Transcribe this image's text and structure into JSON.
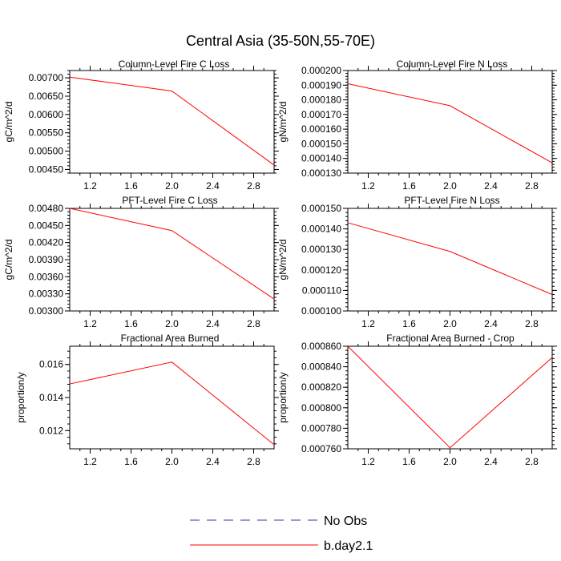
{
  "figure": {
    "title": "Central Asia (35-50N,55-70E)"
  },
  "chart_data": [
    {
      "type": "line",
      "title": "Column-Level Fire C Loss",
      "ylabel": "gC/m^2/d",
      "x": [
        1,
        2,
        3
      ],
      "series": [
        {
          "name": "b.day2.1",
          "values": [
            0.00702,
            0.00664,
            0.00462
          ]
        }
      ],
      "xlim": [
        1,
        3
      ],
      "ylim": [
        0.0044,
        0.0072
      ],
      "xticks": [
        1.2,
        1.6,
        2.0,
        2.4,
        2.8
      ],
      "xtick_labels": [
        "1.2",
        "1.6",
        "2.0",
        "2.4",
        "2.8"
      ],
      "yticks": [
        0.0045,
        0.005,
        0.0055,
        0.006,
        0.0065,
        0.007
      ],
      "ytick_labels": [
        "0.00450",
        "0.00500",
        "0.00550",
        "0.00600",
        "0.00650",
        "0.00700"
      ]
    },
    {
      "type": "line",
      "title": "Column-Level Fire N Loss",
      "ylabel": "gN/m^2/d",
      "x": [
        1,
        2,
        3
      ],
      "series": [
        {
          "name": "b.day2.1",
          "values": [
            0.000191,
            0.000176,
            0.000137
          ]
        }
      ],
      "xlim": [
        1,
        3
      ],
      "ylim": [
        0.00013,
        0.0002
      ],
      "xticks": [
        1.2,
        1.6,
        2.0,
        2.4,
        2.8
      ],
      "xtick_labels": [
        "1.2",
        "1.6",
        "2.0",
        "2.4",
        "2.8"
      ],
      "yticks": [
        0.00013,
        0.00014,
        0.00015,
        0.00016,
        0.00017,
        0.00018,
        0.00019,
        0.0002
      ],
      "ytick_labels": [
        "0.000130",
        "0.000140",
        "0.000150",
        "0.000160",
        "0.000170",
        "0.000180",
        "0.000190",
        "0.000200"
      ]
    },
    {
      "type": "line",
      "title": "PFT-Level Fire C Loss",
      "ylabel": "gC/m^2/d",
      "x": [
        1,
        2,
        3
      ],
      "series": [
        {
          "name": "b.day2.1",
          "values": [
            0.0048,
            0.00441,
            0.00321
          ]
        }
      ],
      "xlim": [
        1,
        3
      ],
      "ylim": [
        0.003,
        0.0048
      ],
      "xticks": [
        1.2,
        1.6,
        2.0,
        2.4,
        2.8
      ],
      "xtick_labels": [
        "1.2",
        "1.6",
        "2.0",
        "2.4",
        "2.8"
      ],
      "yticks": [
        0.003,
        0.0033,
        0.0036,
        0.0039,
        0.0042,
        0.0045,
        0.0048
      ],
      "ytick_labels": [
        "0.00300",
        "0.00330",
        "0.00360",
        "0.00390",
        "0.00420",
        "0.00450",
        "0.00480"
      ]
    },
    {
      "type": "line",
      "title": "PFT-Level Fire N Loss",
      "ylabel": "gN/m^2/d",
      "x": [
        1,
        2,
        3
      ],
      "series": [
        {
          "name": "b.day2.1",
          "values": [
            0.000143,
            0.000129,
            0.000108
          ]
        }
      ],
      "xlim": [
        1,
        3
      ],
      "ylim": [
        0.0001,
        0.00015
      ],
      "xticks": [
        1.2,
        1.6,
        2.0,
        2.4,
        2.8
      ],
      "xtick_labels": [
        "1.2",
        "1.6",
        "2.0",
        "2.4",
        "2.8"
      ],
      "yticks": [
        0.0001,
        0.00011,
        0.00012,
        0.00013,
        0.00014,
        0.00015
      ],
      "ytick_labels": [
        "0.000100",
        "0.000110",
        "0.000120",
        "0.000130",
        "0.000140",
        "0.000150"
      ]
    },
    {
      "type": "line",
      "title": "Fractional Area Burned",
      "ylabel": "proportion/y",
      "x": [
        1,
        2,
        3
      ],
      "series": [
        {
          "name": "b.day2.1",
          "values": [
            0.01482,
            0.01614,
            0.01115
          ]
        }
      ],
      "xlim": [
        1,
        3
      ],
      "ylim": [
        0.0109,
        0.0171
      ],
      "xticks": [
        1.2,
        1.6,
        2.0,
        2.4,
        2.8
      ],
      "xtick_labels": [
        "1.2",
        "1.6",
        "2.0",
        "2.4",
        "2.8"
      ],
      "yticks": [
        0.012,
        0.014,
        0.016
      ],
      "ytick_labels": [
        "0.012",
        "0.014",
        "0.016"
      ]
    },
    {
      "type": "line",
      "title": "Fractional Area Burned - Crop",
      "ylabel": "proportion/y",
      "x": [
        1,
        2,
        3
      ],
      "series": [
        {
          "name": "b.day2.1",
          "values": [
            0.00086,
            0.000761,
            0.000849
          ]
        }
      ],
      "xlim": [
        1,
        3
      ],
      "ylim": [
        0.00076,
        0.00086
      ],
      "xticks": [
        1.2,
        1.6,
        2.0,
        2.4,
        2.8
      ],
      "xtick_labels": [
        "1.2",
        "1.6",
        "2.0",
        "2.4",
        "2.8"
      ],
      "yticks": [
        0.00076,
        0.00078,
        0.0008,
        0.00082,
        0.00084,
        0.00086
      ],
      "ytick_labels": [
        "0.000760",
        "0.000780",
        "0.000800",
        "0.000820",
        "0.000840",
        "0.000860"
      ]
    }
  ],
  "legend": {
    "items": [
      {
        "label": "No Obs",
        "color": "#3333aa",
        "dash": "dashed"
      },
      {
        "label": "b.day2.1",
        "color": "#ff0000",
        "dash": "solid"
      }
    ]
  }
}
